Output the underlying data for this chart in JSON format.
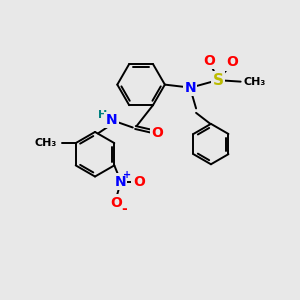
{
  "background_color": "#e8e8e8",
  "bond_color": "#000000",
  "N_color": "#0000ff",
  "O_color": "#ff0000",
  "S_color": "#bbbb00",
  "H_color": "#008080",
  "figsize": [
    3.0,
    3.0
  ],
  "dpi": 100,
  "xlim": [
    0,
    10
  ],
  "ylim": [
    0,
    10
  ]
}
